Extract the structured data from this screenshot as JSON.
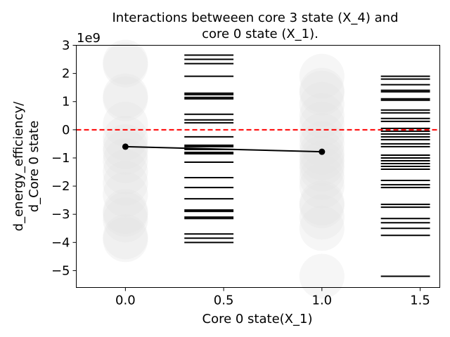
{
  "chart_data": {
    "type": "scatter",
    "title_line1": "Interactions betweeen core 3 state (X_4)  and",
    "title_line2": "core 0 state (X_1).",
    "xlabel": "Core 0 state(X_1)",
    "ylabel_line1": "d_energy_efficiency/",
    "ylabel_line2": "d_Core 0 state",
    "y_offset_label": "1e9",
    "xlim": [
      -0.25,
      1.6
    ],
    "ylim": [
      -5.6,
      3.0
    ],
    "x_ticks": [
      0.0,
      0.5,
      1.0,
      1.5
    ],
    "x_tick_labels": [
      "0.0",
      "0.5",
      "1.0",
      "1.5"
    ],
    "y_ticks": [
      3,
      2,
      1,
      0,
      -1,
      -2,
      -3,
      -4,
      -5
    ],
    "y_tick_labels": [
      "3",
      "2",
      "1",
      "0",
      "−1",
      "−2",
      "−3",
      "−4",
      "−5"
    ],
    "zero_line": {
      "y": 0,
      "color": "#ff0000",
      "style": "dashed"
    },
    "scatter_x0": {
      "x": 0.0,
      "y": [
        2.4,
        2.3,
        1.2,
        1.1,
        0.2,
        -0.3,
        -0.6,
        -0.8,
        -1.1,
        -1.5,
        -1.9,
        -2.3,
        -2.9,
        -3.0,
        -3.2,
        -3.8,
        -3.9
      ]
    },
    "scatter_x1": {
      "x": 1.0,
      "y": [
        1.9,
        1.4,
        1.3,
        0.9,
        0.5,
        0.2,
        -0.2,
        -0.5,
        -0.8,
        -1.0,
        -1.2,
        -1.4,
        -1.7,
        -2.0,
        -2.6,
        -2.7,
        -3.1,
        -3.5,
        -5.2
      ]
    },
    "rug_x0": {
      "x_range": [
        0.3,
        0.55
      ],
      "y": [
        2.65,
        2.5,
        2.35,
        1.9,
        1.3,
        1.25,
        1.15,
        1.1,
        0.55,
        0.35,
        0.25,
        -0.25,
        -0.55,
        -0.6,
        -0.7,
        -0.8,
        -0.85,
        -1.15,
        -1.7,
        -2.05,
        -2.45,
        -2.85,
        -2.9,
        -3.1,
        -3.15,
        -3.7,
        -3.85,
        -4.0
      ]
    },
    "rug_x1": {
      "x_range": [
        1.3,
        1.55
      ],
      "y": [
        1.9,
        1.8,
        1.6,
        1.4,
        1.35,
        1.1,
        1.05,
        0.7,
        0.6,
        0.4,
        0.3,
        0.05,
        -0.05,
        -0.15,
        -0.25,
        -0.35,
        -0.5,
        -0.6,
        -0.9,
        -1.0,
        -1.1,
        -1.2,
        -1.3,
        -1.4,
        -1.8,
        -1.95,
        -2.05,
        -2.65,
        -2.75,
        -3.15,
        -3.3,
        -3.5,
        -3.75,
        -5.2
      ]
    },
    "mean_line": {
      "x": [
        0.0,
        1.0
      ],
      "y": [
        -0.6,
        -0.78
      ],
      "color": "#000000"
    },
    "colors": {
      "scatter": "#e6e6e6",
      "rug": "#000000",
      "axes": "#000000"
    }
  }
}
